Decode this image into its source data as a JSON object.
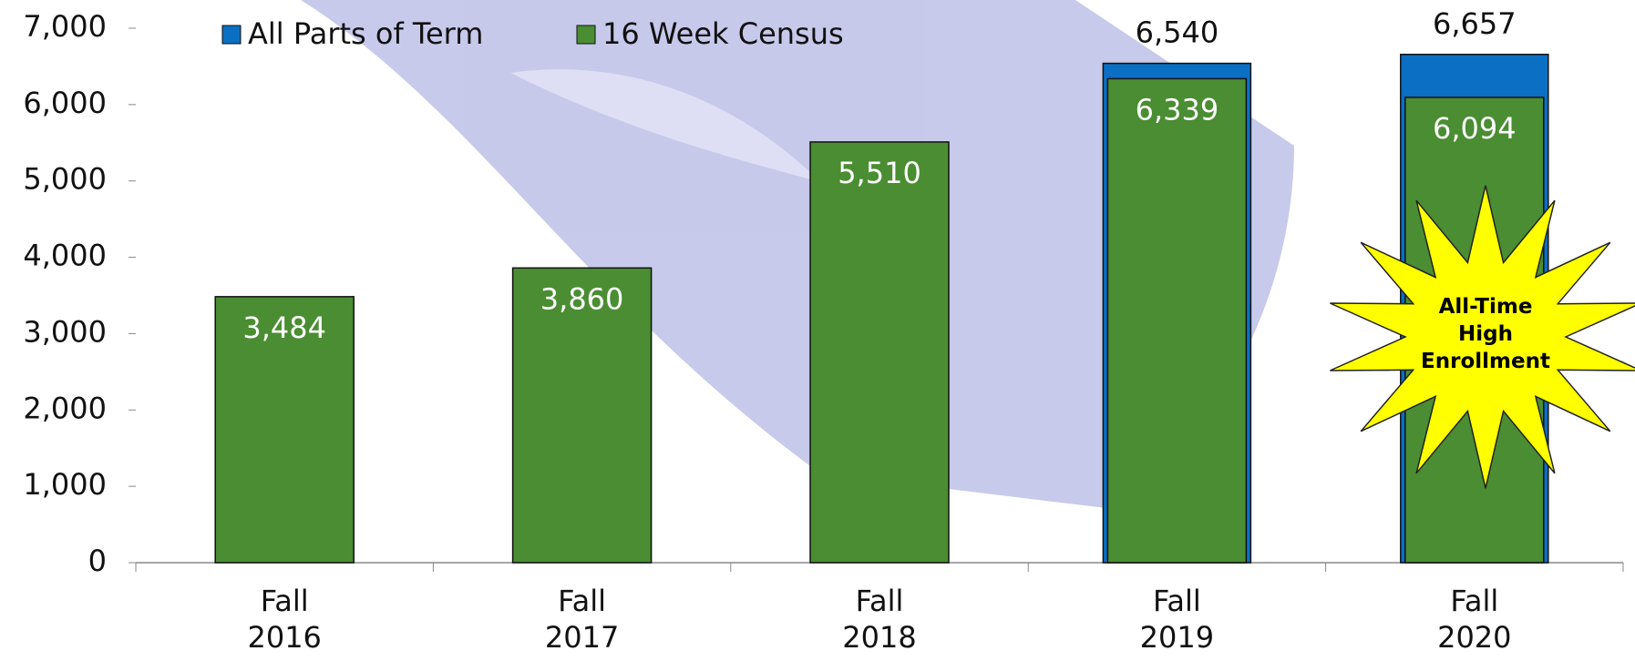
{
  "chart_data": {
    "type": "bar",
    "categories": [
      "Fall 2016",
      "Fall 2017",
      "Fall 2018",
      "Fall 2019",
      "Fall 2020"
    ],
    "series": [
      {
        "name": "All Parts of Term",
        "color": "#0b6fc4",
        "values": [
          null,
          null,
          null,
          6540,
          6657
        ],
        "value_labels": [
          null,
          null,
          null,
          "6,540",
          "6,657"
        ]
      },
      {
        "name": "16 Week Census",
        "color": "#4a8d32",
        "values": [
          3484,
          3860,
          5510,
          6339,
          6094
        ],
        "value_labels": [
          "3,484",
          "3,860",
          "5,510",
          "6,339",
          "6,094"
        ]
      }
    ],
    "ylim": [
      0,
      7000
    ],
    "yticks": [
      {
        "value": 0,
        "label": "0"
      },
      {
        "value": 1000,
        "label": "1,000"
      },
      {
        "value": 2000,
        "label": "2,000"
      },
      {
        "value": 3000,
        "label": "3,000"
      },
      {
        "value": 4000,
        "label": "4,000"
      },
      {
        "value": 5000,
        "label": "5,000"
      },
      {
        "value": 6000,
        "label": "6,000"
      },
      {
        "value": 7000,
        "label": "7,000"
      }
    ],
    "legend": "top",
    "annotation": "All-Time High Enrollment"
  }
}
